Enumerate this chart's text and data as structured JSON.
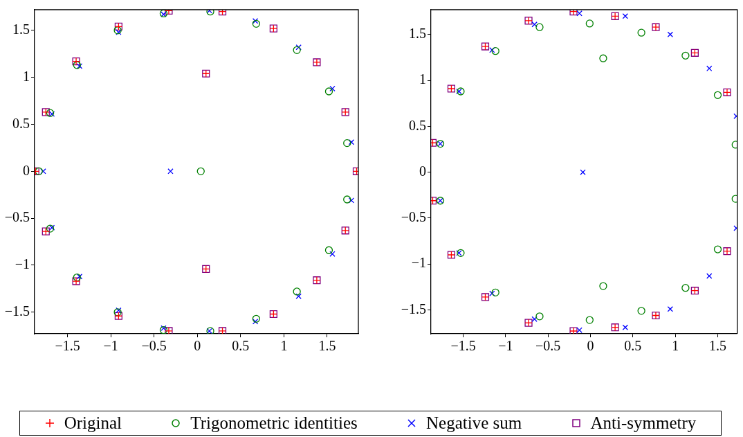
{
  "chart_data": [
    {
      "type": "scatter",
      "xlim": [
        -1.88,
        1.86
      ],
      "ylim": [
        -1.73,
        1.72
      ],
      "xticks": [
        -1.5,
        -1,
        -0.5,
        0,
        0.5,
        1,
        1.5
      ],
      "yticks": [
        -1.5,
        -1,
        -0.5,
        0,
        0.5,
        1,
        1.5
      ],
      "legend": "bottom",
      "series": [
        {
          "name": "Original",
          "color": "#ff0000",
          "marker": "cross",
          "x": [
            -1.87,
            -1.75,
            -1.4,
            -0.91,
            -0.33,
            0.1,
            0.29,
            0.88,
            1.38,
            1.71,
            1.84,
            -1.75,
            -1.4,
            -0.91,
            -0.33,
            0.1,
            0.29,
            0.88,
            1.38,
            1.71
          ],
          "values": [
            0,
            0.63,
            1.17,
            1.54,
            1.71,
            1.04,
            1.7,
            1.52,
            1.16,
            0.63,
            0,
            -0.64,
            -1.17,
            -1.54,
            -1.7,
            -1.04,
            -1.7,
            -1.52,
            -1.16,
            -0.63
          ]
        },
        {
          "name": "Trigonometric identities",
          "color": "#008000",
          "marker": "circle",
          "x": [
            -1.83,
            -1.7,
            -1.39,
            -0.92,
            -0.39,
            0.15,
            0.68,
            1.15,
            1.52,
            1.73,
            0.04,
            -1.7,
            -1.39,
            -0.92,
            -0.39,
            0.15,
            0.68,
            1.15,
            1.52,
            1.73
          ],
          "values": [
            0,
            0.62,
            1.13,
            1.5,
            1.68,
            1.7,
            1.57,
            1.29,
            0.85,
            0.3,
            0,
            -0.61,
            -1.13,
            -1.5,
            -1.69,
            -1.7,
            -1.57,
            -1.28,
            -0.84,
            -0.3
          ]
        },
        {
          "name": "Negative sum",
          "color": "#0000ff",
          "marker": "x",
          "x": [
            -1.78,
            -1.68,
            -1.36,
            -0.91,
            -0.39,
            0.14,
            0.67,
            1.17,
            1.56,
            1.78,
            -0.31,
            -1.68,
            -1.36,
            -0.91,
            -0.39,
            0.14,
            0.67,
            1.17,
            1.56,
            1.78
          ],
          "values": [
            0,
            0.61,
            1.12,
            1.48,
            1.67,
            1.71,
            1.6,
            1.32,
            0.88,
            0.31,
            0,
            -0.6,
            -1.12,
            -1.48,
            -1.67,
            -1.7,
            -1.6,
            -1.33,
            -0.88,
            -0.31
          ]
        },
        {
          "name": "Anti-symmetry",
          "color": "#800080",
          "marker": "square",
          "x": [
            -1.87,
            -1.75,
            -1.4,
            -0.91,
            -0.33,
            0.1,
            0.29,
            0.88,
            1.38,
            1.71,
            1.84,
            -1.75,
            -1.4,
            -0.91,
            -0.33,
            0.1,
            0.29,
            0.88,
            1.38,
            1.71
          ],
          "values": [
            0,
            0.63,
            1.17,
            1.54,
            1.71,
            1.04,
            1.7,
            1.52,
            1.16,
            0.63,
            0,
            -0.64,
            -1.17,
            -1.54,
            -1.7,
            -1.04,
            -1.7,
            -1.52,
            -1.16,
            -0.63
          ]
        }
      ]
    },
    {
      "type": "scatter",
      "xlim": [
        -1.88,
        1.73
      ],
      "ylim": [
        -1.76,
        1.77
      ],
      "xticks": [
        -1.5,
        -1,
        -0.5,
        0,
        0.5,
        1,
        1.5
      ],
      "yticks": [
        -1.5,
        -1,
        -0.5,
        0,
        0.5,
        1,
        1.5
      ],
      "series": [
        {
          "color": "#ff0000",
          "marker": "cross",
          "x": [
            -1.86,
            -1.64,
            -1.24,
            -0.73,
            -0.2,
            0.29,
            0.77,
            1.23,
            1.61,
            -1.86,
            -1.64,
            -1.24,
            -0.73,
            -0.2,
            0.29,
            0.77,
            1.23,
            1.61
          ],
          "values": [
            0.32,
            0.91,
            1.37,
            1.65,
            1.75,
            1.7,
            1.58,
            1.3,
            0.87,
            -0.31,
            -0.9,
            -1.36,
            -1.64,
            -1.73,
            -1.69,
            -1.56,
            -1.29,
            -0.86
          ]
        },
        {
          "color": "#008000",
          "marker": "circle",
          "x": [
            -1.77,
            -1.53,
            -1.12,
            -0.6,
            -0.01,
            0.15,
            0.6,
            1.12,
            1.5,
            1.71,
            -1.77,
            -1.53,
            -1.12,
            -0.6,
            -0.01,
            0.15,
            0.6,
            1.12,
            1.5,
            1.71
          ],
          "values": [
            0.31,
            0.88,
            1.32,
            1.58,
            1.62,
            1.24,
            1.52,
            1.27,
            0.84,
            0.3,
            -0.31,
            -0.88,
            -1.31,
            -1.57,
            -1.61,
            -1.24,
            -1.51,
            -1.26,
            -0.84,
            -0.29
          ]
        },
        {
          "color": "#0000ff",
          "marker": "x",
          "x": [
            -1.77,
            -1.55,
            -1.16,
            -0.66,
            -0.13,
            0.41,
            0.94,
            1.4,
            1.72,
            -0.09,
            -1.77,
            -1.55,
            -1.16,
            -0.66,
            -0.13,
            0.41,
            0.94,
            1.4,
            1.72
          ],
          "values": [
            0.31,
            0.88,
            1.33,
            1.61,
            1.73,
            1.7,
            1.5,
            1.13,
            0.61,
            0,
            -0.31,
            -0.88,
            -1.32,
            -1.6,
            -1.72,
            -1.69,
            -1.49,
            -1.13,
            -0.61
          ]
        },
        {
          "color": "#800080",
          "marker": "square",
          "x": [
            -1.86,
            -1.64,
            -1.24,
            -0.73,
            -0.2,
            0.29,
            0.77,
            1.23,
            1.61,
            -1.86,
            -1.64,
            -1.24,
            -0.73,
            -0.2,
            0.29,
            0.77,
            1.23,
            1.61
          ],
          "values": [
            0.32,
            0.91,
            1.37,
            1.65,
            1.75,
            1.7,
            1.58,
            1.3,
            0.87,
            -0.31,
            -0.9,
            -1.36,
            -1.64,
            -1.73,
            -1.69,
            -1.56,
            -1.29,
            -0.86
          ]
        }
      ]
    }
  ]
}
